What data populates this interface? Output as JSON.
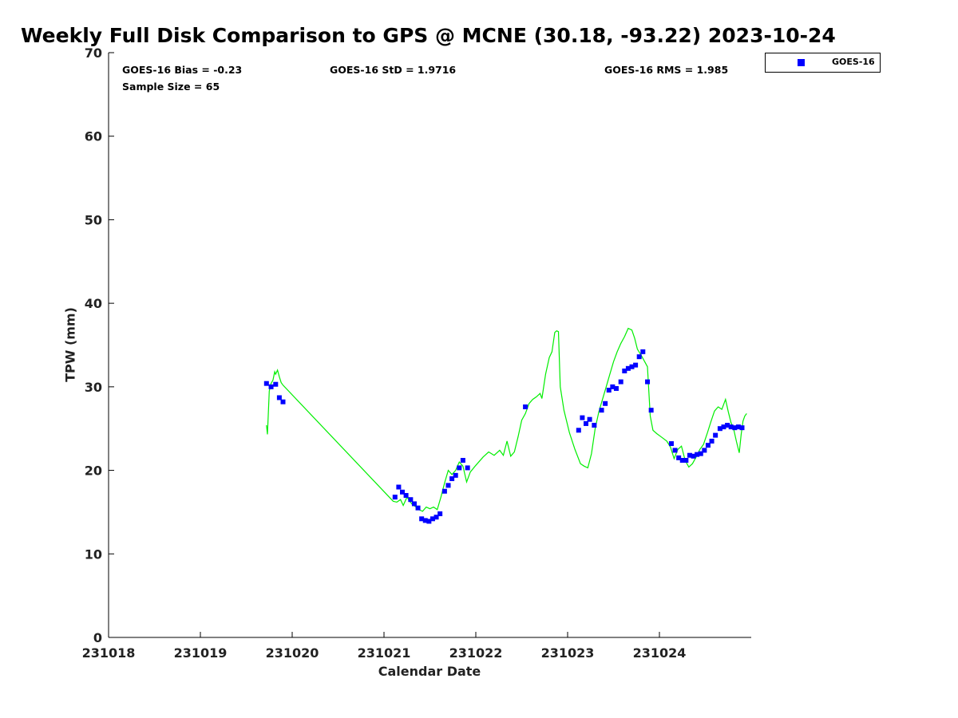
{
  "chart_data": {
    "type": "line",
    "title": "Weekly Full Disk Comparison to GPS @ MCNE (30.18, -93.22) 2023-10-24",
    "xlabel": "Calendar Date",
    "ylabel": "TPW (mm)",
    "xlim": [
      "231018",
      "231025"
    ],
    "ylim": [
      0,
      70
    ],
    "yticks": [
      0,
      10,
      20,
      30,
      40,
      50,
      60,
      70
    ],
    "xticks": [
      "231018",
      "231019",
      "231020",
      "231021",
      "231022",
      "231023",
      "231024"
    ],
    "grid": false,
    "legend_position": "top-right",
    "stats": {
      "bias": "GOES-16 Bias = -0.23",
      "std": "GOES-16 StD = 1.9716",
      "rms": "GOES-16 RMS = 1.985",
      "sample": "Sample Size = 65"
    },
    "colors": {
      "goes": "#0000ff",
      "gps": "#00ee00",
      "axis": "#000000"
    },
    "series": [
      {
        "name": "GOES-16",
        "style": "markers",
        "x": [
          "231019.72",
          "231019.77",
          "231019.82",
          "231019.86",
          "231019.90",
          "231021.12",
          "231021.16",
          "231021.20",
          "231021.24",
          "231021.29",
          "231021.33",
          "231021.37",
          "231021.41",
          "231021.45",
          "231021.49",
          "231021.53",
          "231021.57",
          "231021.61",
          "231021.66",
          "231021.70",
          "231021.74",
          "231021.78",
          "231021.82",
          "231021.86",
          "231021.91",
          "231022.54",
          "231023.12",
          "231023.16",
          "231023.20",
          "231023.24",
          "231023.29",
          "231023.37",
          "231023.41",
          "231023.45",
          "231023.49",
          "231023.53",
          "231023.58",
          "231023.62",
          "231023.66",
          "231023.70",
          "231023.74",
          "231023.78",
          "231023.82",
          "231023.87",
          "231023.91",
          "231024.13",
          "231024.17",
          "231024.21",
          "231024.25",
          "231024.29",
          "231024.33",
          "231024.37",
          "231024.41",
          "231024.45",
          "231024.49",
          "231024.53",
          "231024.57",
          "231024.61",
          "231024.66",
          "231024.70",
          "231024.74",
          "231024.78",
          "231024.82",
          "231024.86",
          "231024.90"
        ],
        "y": [
          30.4,
          30.0,
          30.3,
          28.7,
          28.2,
          16.8,
          18.0,
          17.4,
          17.0,
          16.5,
          16.0,
          15.5,
          14.2,
          14.0,
          13.9,
          14.2,
          14.4,
          14.8,
          17.5,
          18.2,
          19.0,
          19.4,
          20.3,
          21.2,
          20.3,
          27.6,
          24.8,
          26.3,
          25.6,
          26.1,
          25.4,
          27.2,
          28.0,
          29.6,
          30.0,
          29.8,
          30.6,
          31.9,
          32.2,
          32.4,
          32.6,
          33.6,
          34.2,
          30.6,
          27.2,
          23.2,
          22.4,
          21.5,
          21.2,
          21.2,
          21.8,
          21.7,
          21.9,
          22.0,
          22.4,
          23.0,
          23.5,
          24.2,
          25.0,
          25.2,
          25.4,
          25.2,
          25.1,
          25.2,
          25.1
        ]
      },
      {
        "name": "GPS",
        "style": "line",
        "x": [
          "231019.72",
          "231019.73",
          "231019.75",
          "231019.77",
          "231019.79",
          "231019.81",
          "231019.82",
          "231019.84",
          "231019.86",
          "231019.88",
          "231019.90",
          "231021.10",
          "231021.14",
          "231021.18",
          "231021.21",
          "231021.25",
          "231021.28",
          "231021.31",
          "231021.35",
          "231021.38",
          "231021.42",
          "231021.46",
          "231021.50",
          "231021.54",
          "231021.58",
          "231021.62",
          "231021.66",
          "231021.70",
          "231021.74",
          "231021.78",
          "231021.82",
          "231021.86",
          "231021.90",
          "231021.94",
          "231022.00",
          "231022.08",
          "231022.14",
          "231022.20",
          "231022.26",
          "231022.30",
          "231022.34",
          "231022.38",
          "231022.42",
          "231022.46",
          "231022.50",
          "231022.54",
          "231022.58",
          "231022.62",
          "231022.66",
          "231022.70",
          "231022.72",
          "231022.76",
          "231022.80",
          "231022.83",
          "231022.86",
          "231022.88",
          "231022.90",
          "231022.92",
          "231022.96",
          "231023.02",
          "231023.08",
          "231023.14",
          "231023.18",
          "231023.22",
          "231023.26",
          "231023.30",
          "231023.34",
          "231023.38",
          "231023.42",
          "231023.46",
          "231023.50",
          "231023.54",
          "231023.58",
          "231023.62",
          "231023.66",
          "231023.70",
          "231023.73",
          "231023.76",
          "231023.80",
          "231023.84",
          "231023.87",
          "231023.90",
          "231023.93",
          "231023.97",
          "231024.02",
          "231024.08",
          "231024.12",
          "231024.16",
          "231024.20",
          "231024.24",
          "231024.28",
          "231024.32",
          "231024.36",
          "231024.40",
          "231024.44",
          "231024.48",
          "231024.52",
          "231024.56",
          "231024.60",
          "231024.64",
          "231024.68",
          "231024.72",
          "231024.75",
          "231024.78",
          "231024.81",
          "231024.84",
          "231024.87",
          "231024.89",
          "231024.91",
          "231024.93",
          "231024.95"
        ],
        "y": [
          25.4,
          24.3,
          29.5,
          30.4,
          30.8,
          31.8,
          31.5,
          32.0,
          31.2,
          30.5,
          30.2,
          16.3,
          16.2,
          16.5,
          15.8,
          16.8,
          16.3,
          15.9,
          15.6,
          15.3,
          15.1,
          15.6,
          15.4,
          15.6,
          15.3,
          16.8,
          18.5,
          20.0,
          19.5,
          20.0,
          21.0,
          20.5,
          18.6,
          19.8,
          20.6,
          21.6,
          22.2,
          21.8,
          22.4,
          21.8,
          23.5,
          21.7,
          22.2,
          24.0,
          26.0,
          26.8,
          28.0,
          28.5,
          28.8,
          29.2,
          28.6,
          31.5,
          33.5,
          34.2,
          36.5,
          36.7,
          36.6,
          30.0,
          27.2,
          24.5,
          22.5,
          20.8,
          20.5,
          20.3,
          22.0,
          25.0,
          27.0,
          28.5,
          30.0,
          31.5,
          33.0,
          34.2,
          35.2,
          36.0,
          37.0,
          36.8,
          35.8,
          34.5,
          33.8,
          33.0,
          32.4,
          26.5,
          24.8,
          24.4,
          24.0,
          23.5,
          22.8,
          21.4,
          22.5,
          22.9,
          21.2,
          20.4,
          20.8,
          21.6,
          22.5,
          23.1,
          24.4,
          25.8,
          27.1,
          27.6,
          27.3,
          28.5,
          27.0,
          25.7,
          24.9,
          23.4,
          22.1,
          24.3,
          25.9,
          26.5,
          26.8
        ]
      }
    ]
  }
}
